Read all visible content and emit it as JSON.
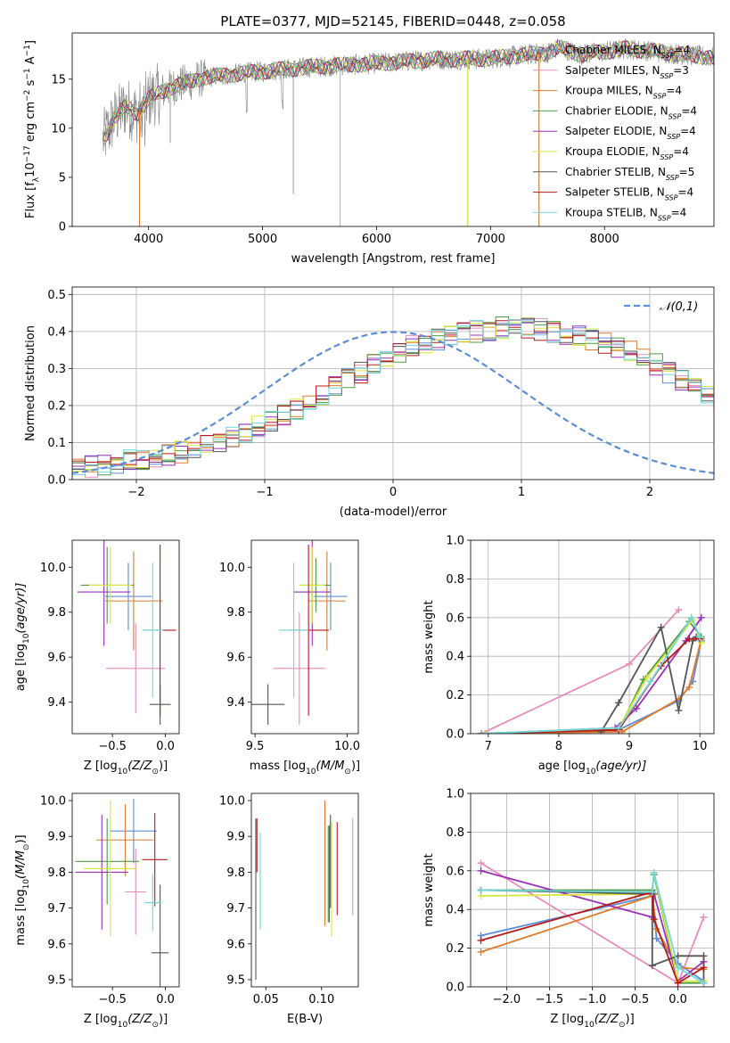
{
  "colors": {
    "chabrier_miles": "#5b8ed6",
    "salpeter_miles": "#e88bbd",
    "kroupa_miles": "#e07b2a",
    "chabrier_elodie": "#4f9a45",
    "salpeter_elodie": "#9b2fb8",
    "kroupa_elodie": "#d6e63a",
    "chabrier_stelib": "#555555",
    "salpeter_stelib": "#b81a1a",
    "kroupa_stelib": "#6fd8dc",
    "gaussian": "#5b8ed6",
    "spectrum": "#808080"
  },
  "chart_data": [
    {
      "type": "line",
      "title": "PLATE=0377, MJD=52145, FIBERID=0448, z=0.058",
      "xlabel": "wavelength [Angstrom, rest frame]",
      "ylabel_parts": [
        "Flux [f",
        "λ",
        "10",
        "−17",
        " erg cm",
        "−2",
        " s",
        "−1",
        " A",
        "−1",
        "]"
      ],
      "xlim": [
        3330,
        8960
      ],
      "ylim": [
        0,
        19.7
      ],
      "xticks": [
        4000,
        5000,
        6000,
        7000,
        8000
      ],
      "yticks": [
        0,
        5,
        10,
        15
      ],
      "legend_position": "right",
      "legend": [
        {
          "key": "chabrier_miles",
          "base": "Chabrier MILES, N",
          "sub": "SSP",
          "suffix": "=4"
        },
        {
          "key": "salpeter_miles",
          "base": "Salpeter MILES, N",
          "sub": "SSP",
          "suffix": "=3"
        },
        {
          "key": "kroupa_miles",
          "base": "Kroupa MILES, N",
          "sub": "SSP",
          "suffix": "=4"
        },
        {
          "key": "chabrier_elodie",
          "base": "Chabrier ELODIE, N",
          "sub": "SSP",
          "suffix": "=4"
        },
        {
          "key": "salpeter_elodie",
          "base": "Salpeter ELODIE, N",
          "sub": "SSP",
          "suffix": "=4"
        },
        {
          "key": "kroupa_elodie",
          "base": "Kroupa ELODIE, N",
          "sub": "SSP",
          "suffix": "=4"
        },
        {
          "key": "chabrier_stelib",
          "base": "Chabrier STELIB, N",
          "sub": "SSP",
          "suffix": "=5"
        },
        {
          "key": "salpeter_stelib",
          "base": "Salpeter STELIB, N",
          "sub": "SSP",
          "suffix": "=4"
        },
        {
          "key": "kroupa_stelib",
          "base": "Kroupa STELIB, N",
          "sub": "SSP",
          "suffix": "=4"
        }
      ],
      "continuum": [
        [
          3600,
          8.8
        ],
        [
          3700,
          11
        ],
        [
          3800,
          12.2
        ],
        [
          3900,
          11.5
        ],
        [
          4000,
          13
        ],
        [
          4200,
          14.2
        ],
        [
          4500,
          15.2
        ],
        [
          5000,
          15.8
        ],
        [
          5500,
          16.3
        ],
        [
          6000,
          16.6
        ],
        [
          6500,
          17
        ],
        [
          7000,
          17.1
        ],
        [
          7500,
          17.7
        ],
        [
          7600,
          18.2
        ],
        [
          7800,
          17.5
        ],
        [
          8200,
          18.1
        ],
        [
          8700,
          17.5
        ],
        [
          8960,
          17.2
        ]
      ],
      "spikes": [
        [
          3920,
          0
        ],
        [
          4190,
          8.5
        ],
        [
          5270,
          3.3
        ],
        [
          5680,
          0
        ],
        [
          6800,
          0
        ],
        [
          7425,
          0
        ]
      ]
    },
    {
      "type": "histogram",
      "xlabel": "(data-model)/error",
      "ylabel": "Normed distribution",
      "xlim": [
        -2.5,
        2.5
      ],
      "ylim": [
        0,
        0.52
      ],
      "xticks": [
        -2,
        -1,
        0,
        1,
        2
      ],
      "xticklabels": [
        "−2",
        "−1",
        "0",
        "1",
        "2"
      ],
      "yticks": [
        0.0,
        0.1,
        0.2,
        0.3,
        0.4,
        0.5
      ],
      "yticklabels": [
        "0.0",
        "0.1",
        "0.2",
        "0.3",
        "0.4",
        "0.5"
      ],
      "legend_label": "𝒩(0,1)",
      "legend_position": "top-right",
      "bin_start": -2.5,
      "bin_width": 0.1,
      "base_counts": [
        0.03,
        0.035,
        0.04,
        0.04,
        0.05,
        0.055,
        0.06,
        0.065,
        0.075,
        0.085,
        0.095,
        0.105,
        0.115,
        0.13,
        0.145,
        0.16,
        0.175,
        0.19,
        0.21,
        0.23,
        0.25,
        0.27,
        0.29,
        0.31,
        0.33,
        0.345,
        0.36,
        0.37,
        0.38,
        0.39,
        0.395,
        0.4,
        0.405,
        0.41,
        0.41,
        0.41,
        0.405,
        0.4,
        0.395,
        0.39,
        0.38,
        0.37,
        0.36,
        0.345,
        0.33,
        0.31,
        0.29,
        0.27,
        0.25,
        0.23,
        0.21,
        0.19,
        0.175,
        0.16,
        0.145,
        0.13,
        0.115,
        0.105,
        0.095,
        0.085,
        0.075,
        0.065,
        0.06,
        0.055,
        0.05,
        0.045,
        0.04,
        0.035,
        0.03,
        0.025,
        0.02
      ]
    },
    {
      "type": "errorbar",
      "xlabel_parts": [
        "Z [log",
        "10",
        "(Z/Z",
        "⊙",
        ")]"
      ],
      "ylabel_parts": [
        "age  [log",
        "10",
        "(age/yr)]"
      ],
      "xlim": [
        -0.88,
        0.13
      ],
      "ylim": [
        9.26,
        10.12
      ],
      "xticks": [
        -0.5,
        0.0
      ],
      "xticklabels": [
        "−0.5",
        "0.0"
      ],
      "yticks": [
        9.4,
        9.6,
        9.8,
        10.0
      ],
      "yticklabels": [
        "9.4",
        "9.6",
        "9.8",
        "10.0"
      ],
      "points": [
        {
          "key": "chabrier_miles",
          "x": -0.35,
          "y": 9.87,
          "xerr": 0.22,
          "yerr": 0.15
        },
        {
          "key": "salpeter_miles",
          "x": -0.28,
          "y": 9.55,
          "xerr": 0.28,
          "yerr": 0.2
        },
        {
          "key": "kroupa_miles",
          "x": -0.3,
          "y": 9.85,
          "xerr": 0.27,
          "yerr": 0.22
        },
        {
          "key": "chabrier_elodie",
          "x": -0.55,
          "y": 9.92,
          "xerr": 0.25,
          "yerr": 0.17
        },
        {
          "key": "salpeter_elodie",
          "x": -0.58,
          "y": 9.89,
          "xerr": 0.25,
          "yerr": 0.24
        },
        {
          "key": "kroupa_elodie",
          "x": -0.52,
          "y": 9.92,
          "xerr": 0.2,
          "yerr": 0.17
        },
        {
          "key": "chabrier_stelib",
          "x": -0.05,
          "y": 9.39,
          "xerr": 0.1,
          "yerr": 0.09
        },
        {
          "key": "salpeter_stelib",
          "x": -0.05,
          "y": 9.72,
          "xerr": 0.15,
          "yerr": 0.38
        },
        {
          "key": "kroupa_stelib",
          "x": -0.12,
          "y": 9.72,
          "xerr": 0.1,
          "yerr": 0.3
        }
      ]
    },
    {
      "type": "errorbar",
      "xlabel_parts": [
        "mass [log",
        "10",
        "(M/M",
        "⊙",
        ")]"
      ],
      "ylabel_parts": [],
      "xlim": [
        9.48,
        10.06
      ],
      "ylim": [
        9.26,
        10.12
      ],
      "xticks": [
        9.5,
        10.0
      ],
      "xticklabels": [
        "9.5",
        "10.0"
      ],
      "yticks": [
        9.4,
        9.6,
        9.8,
        10.0
      ],
      "yticklabels": [
        "9.4",
        "9.6",
        "9.8",
        "10.0"
      ],
      "points": [
        {
          "key": "chabrier_miles",
          "x": 9.91,
          "y": 9.87,
          "xerr": 0.09,
          "yerr": 0.15
        },
        {
          "key": "salpeter_miles",
          "x": 9.74,
          "y": 9.55,
          "xerr": 0.14,
          "yerr": 0.25
        },
        {
          "key": "kroupa_miles",
          "x": 9.89,
          "y": 9.85,
          "xerr": 0.1,
          "yerr": 0.22
        },
        {
          "key": "chabrier_elodie",
          "x": 9.83,
          "y": 9.92,
          "xerr": 0.08,
          "yerr": 0.12
        },
        {
          "key": "salpeter_elodie",
          "x": 9.81,
          "y": 9.89,
          "xerr": 0.1,
          "yerr": 0.24
        },
        {
          "key": "kroupa_elodie",
          "x": 9.81,
          "y": 9.92,
          "xerr": 0.07,
          "yerr": 0.17
        },
        {
          "key": "chabrier_stelib",
          "x": 9.57,
          "y": 9.39,
          "xerr": 0.09,
          "yerr": 0.09
        },
        {
          "key": "salpeter_stelib",
          "x": 9.79,
          "y": 9.72,
          "xerr": 0.11,
          "yerr": 0.38
        },
        {
          "key": "kroupa_stelib",
          "x": 9.71,
          "y": 9.72,
          "xerr": 0.08,
          "yerr": 0.3
        }
      ]
    },
    {
      "type": "line",
      "xlabel_parts": [
        "age  [log",
        "10",
        "(age/yr)]"
      ],
      "ylabel": "mass weight",
      "xlim": [
        6.75,
        10.2
      ],
      "ylim": [
        0,
        1.0
      ],
      "xticks": [
        7,
        8,
        9,
        10
      ],
      "xticklabels": [
        "7",
        "8",
        "9",
        "10"
      ],
      "yticks": [
        0.0,
        0.2,
        0.4,
        0.6,
        0.8,
        1.0
      ],
      "yticklabels": [
        "0.0",
        "0.2",
        "0.4",
        "0.6",
        "0.8",
        "1.0"
      ],
      "grid": true,
      "series": [
        {
          "key": "chabrier_miles",
          "x": [
            6.9,
            8.85,
            9.7,
            9.9,
            10.02
          ],
          "y": [
            0.0,
            0.02,
            0.17,
            0.27,
            0.48
          ]
        },
        {
          "key": "salpeter_miles",
          "x": [
            6.9,
            9.0,
            9.7
          ],
          "y": [
            0.0,
            0.36,
            0.64
          ]
        },
        {
          "key": "kroupa_miles",
          "x": [
            6.9,
            8.9,
            9.7,
            9.85,
            10.02
          ],
          "y": [
            0.0,
            0.01,
            0.18,
            0.24,
            0.49
          ]
        },
        {
          "key": "chabrier_elodie",
          "x": [
            6.9,
            8.85,
            9.2,
            9.85,
            10.02
          ],
          "y": [
            0.0,
            0.02,
            0.28,
            0.58,
            0.5
          ]
        },
        {
          "key": "salpeter_elodie",
          "x": [
            6.9,
            8.8,
            9.1,
            9.8,
            10.02
          ],
          "y": [
            0.0,
            0.03,
            0.13,
            0.48,
            0.6
          ]
        },
        {
          "key": "kroupa_elodie",
          "x": [
            6.95,
            8.85,
            9.25,
            9.9,
            10.02
          ],
          "y": [
            0.0,
            0.03,
            0.29,
            0.59,
            0.47
          ]
        },
        {
          "key": "chabrier_stelib",
          "x": [
            8.6,
            8.85,
            9.45,
            9.7,
            9.9,
            9.95
          ],
          "y": [
            0.01,
            0.16,
            0.55,
            0.12,
            0.48,
            0.5
          ]
        },
        {
          "key": "salpeter_stelib",
          "x": [
            6.9,
            8.85,
            9.45,
            9.85,
            10.0
          ],
          "y": [
            0.0,
            0.02,
            0.35,
            0.49,
            0.49
          ]
        },
        {
          "key": "kroupa_stelib",
          "x": [
            6.9,
            8.85,
            9.3,
            9.88,
            10.0
          ],
          "y": [
            0.0,
            0.03,
            0.27,
            0.6,
            0.5
          ]
        }
      ]
    },
    {
      "type": "errorbar",
      "xlabel_parts": [
        "Z [log",
        "10",
        "(Z/Z",
        "⊙",
        ")]"
      ],
      "ylabel_parts": [
        "mass [log",
        "10",
        "(M/M",
        "⊙",
        ")]"
      ],
      "xlim": [
        -0.88,
        0.13
      ],
      "ylim": [
        9.48,
        10.02
      ],
      "xticks": [
        -0.5,
        0.0
      ],
      "xticklabels": [
        "−0.5",
        "0.0"
      ],
      "yticks": [
        9.5,
        9.6,
        9.7,
        9.8,
        9.9,
        10.0
      ],
      "yticklabels": [
        "9.5",
        "9.6",
        "9.7",
        "9.8",
        "9.9",
        "10.0"
      ],
      "points": [
        {
          "key": "chabrier_miles",
          "x": -0.3,
          "y": 9.915,
          "xerr": 0.22,
          "yerr": 0.09
        },
        {
          "key": "salpeter_miles",
          "x": -0.28,
          "y": 9.745,
          "xerr": 0.1,
          "yerr": 0.12
        },
        {
          "key": "kroupa_miles",
          "x": -0.38,
          "y": 9.89,
          "xerr": 0.27,
          "yerr": 0.1
        },
        {
          "key": "chabrier_elodie",
          "x": -0.55,
          "y": 9.83,
          "xerr": 0.3,
          "yerr": 0.12
        },
        {
          "key": "salpeter_elodie",
          "x": -0.6,
          "y": 9.8,
          "xerr": 0.25,
          "yerr": 0.16
        },
        {
          "key": "kroupa_elodie",
          "x": -0.52,
          "y": 9.81,
          "xerr": 0.25,
          "yerr": 0.19
        },
        {
          "key": "chabrier_stelib",
          "x": -0.05,
          "y": 9.575,
          "xerr": 0.08,
          "yerr": 0.19
        },
        {
          "key": "salpeter_stelib",
          "x": -0.1,
          "y": 9.835,
          "xerr": 0.12,
          "yerr": 0.13
        },
        {
          "key": "kroupa_stelib",
          "x": -0.12,
          "y": 9.715,
          "xerr": 0.08,
          "yerr": 0.08
        }
      ]
    },
    {
      "type": "errorbar_vertical",
      "xlabel": "E(B-V)",
      "xlim": [
        0.037,
        0.133
      ],
      "ylim": [
        9.48,
        10.02
      ],
      "xticks": [
        0.05,
        0.1
      ],
      "xticklabels": [
        "0.05",
        "0.10"
      ],
      "yticks": [
        9.5,
        9.6,
        9.7,
        9.8,
        9.9,
        10.0
      ],
      "yticklabels": [
        "9.5",
        "9.6",
        "9.7",
        "9.8",
        "9.9",
        "10.0"
      ],
      "bars": [
        {
          "key": "chabrier_stelib",
          "x": 0.041,
          "y0": 9.5,
          "y1": 9.95
        },
        {
          "key": "salpeter_stelib",
          "x": 0.042,
          "y0": 9.8,
          "y1": 9.95
        },
        {
          "key": "kroupa_stelib",
          "x": 0.045,
          "y0": 9.64,
          "y1": 9.91
        },
        {
          "key": "kroupa_miles",
          "x": 0.103,
          "y0": 9.65,
          "y1": 10.0
        },
        {
          "key": "chabrier_elodie",
          "x": 0.106,
          "y0": 9.66,
          "y1": 9.93
        },
        {
          "key": "salpeter_elodie",
          "x": 0.107,
          "y0": 9.66,
          "y1": 9.93
        },
        {
          "key": "chabrier_stelib",
          "x": 0.108,
          "y0": 9.7,
          "y1": 9.96
        },
        {
          "key": "kroupa_elodie",
          "x": 0.109,
          "y0": 9.62,
          "y1": 9.94
        },
        {
          "key": "salpeter_stelib",
          "x": 0.114,
          "y0": 9.68,
          "y1": 9.94
        },
        {
          "key": "salpeter_miles",
          "x": 0.128,
          "y0": 9.68,
          "y1": 9.95
        }
      ]
    },
    {
      "type": "line",
      "xlabel_parts": [
        "Z [log",
        "10",
        "(Z/Z",
        "⊙",
        ")]"
      ],
      "ylabel": "mass weight",
      "xlim": [
        -2.42,
        0.42
      ],
      "ylim": [
        0,
        1.0
      ],
      "xticks": [
        -2.0,
        -1.5,
        -1.0,
        -0.5,
        0.0
      ],
      "xticklabels": [
        "−2.0",
        "−1.5",
        "−1.0",
        "−0.5",
        "0.0"
      ],
      "yticks": [
        0.0,
        0.2,
        0.4,
        0.6,
        0.8,
        1.0
      ],
      "yticklabels": [
        "0.0",
        "0.2",
        "0.4",
        "0.6",
        "0.8",
        "1.0"
      ],
      "grid": true,
      "series": [
        {
          "key": "chabrier_miles",
          "x": [
            -2.3,
            -0.3,
            -0.25,
            0.0,
            0.3
          ],
          "y": [
            0.265,
            0.47,
            0.25,
            0.12,
            0.03
          ]
        },
        {
          "key": "salpeter_miles",
          "x": [
            -2.3,
            0.0,
            0.3
          ],
          "y": [
            0.64,
            0.02,
            0.36
          ]
        },
        {
          "key": "kroupa_miles",
          "x": [
            -2.3,
            -0.3,
            -0.25,
            0.0,
            0.3
          ],
          "y": [
            0.18,
            0.47,
            0.3,
            0.1,
            0.09
          ]
        },
        {
          "key": "chabrier_elodie",
          "x": [
            -2.3,
            -0.3,
            -0.28,
            0.0,
            0.3
          ],
          "y": [
            0.5,
            0.5,
            0.58,
            0.02,
            0.02
          ]
        },
        {
          "key": "salpeter_elodie",
          "x": [
            -2.3,
            -0.3,
            -0.28,
            0.0,
            0.3
          ],
          "y": [
            0.6,
            0.36,
            0.48,
            0.03,
            0.13
          ]
        },
        {
          "key": "kroupa_elodie",
          "x": [
            -2.3,
            -0.3,
            -0.28,
            0.0,
            0.3
          ],
          "y": [
            0.47,
            0.48,
            0.59,
            0.03,
            0.03
          ]
        },
        {
          "key": "chabrier_stelib",
          "x": [
            -2.3,
            -0.3,
            -0.3,
            0.0,
            0.3,
            0.3
          ],
          "y": [
            0.5,
            0.48,
            0.11,
            0.16,
            0.16,
            0.02
          ]
        },
        {
          "key": "salpeter_stelib",
          "x": [
            -2.3,
            -0.3,
            -0.28,
            0.0,
            0.3
          ],
          "y": [
            0.24,
            0.49,
            0.35,
            0.02,
            0.1
          ]
        },
        {
          "key": "kroupa_stelib",
          "x": [
            -2.3,
            -0.3,
            -0.28,
            0.0,
            0.3
          ],
          "y": [
            0.5,
            0.49,
            0.59,
            0.1,
            0.02
          ]
        }
      ]
    }
  ]
}
